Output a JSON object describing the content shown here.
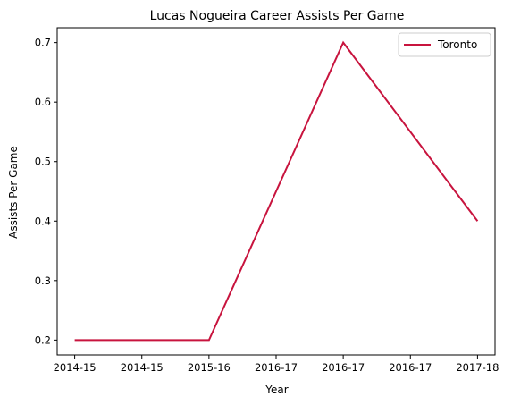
{
  "chart_data": {
    "type": "line",
    "title": "Lucas Nogueira Career Assists Per Game",
    "xlabel": "Year",
    "ylabel": "Assists Per Game",
    "x_tick_labels": [
      "2014-15",
      "2014-15",
      "2015-16",
      "2016-17",
      "2016-17",
      "2016-17",
      "2017-18"
    ],
    "y_ticks": [
      0.2,
      0.3,
      0.4,
      0.5,
      0.6,
      0.7
    ],
    "xlim": [
      0,
      6
    ],
    "ylim": [
      0.175,
      0.725
    ],
    "grid": false,
    "legend": {
      "placement": "top-right"
    },
    "series": [
      {
        "name": "Toronto",
        "color": "#c8143e",
        "x": [
          "2014-15",
          "2015-16",
          "2016-17",
          "2017-18"
        ],
        "y": [
          0.2,
          0.2,
          0.7,
          0.4
        ]
      }
    ]
  }
}
